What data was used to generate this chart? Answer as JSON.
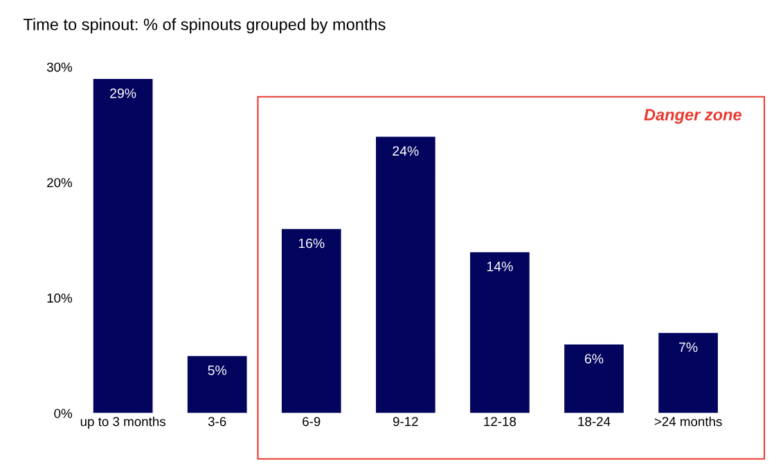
{
  "chart_data": {
    "type": "bar",
    "title": "Time to spinout: % of spinouts grouped by months",
    "categories": [
      "up to 3 months",
      "3-6",
      "6-9",
      "9-12",
      "12-18",
      "18-24",
      ">24 months"
    ],
    "values": [
      29,
      5,
      16,
      24,
      14,
      6,
      7
    ],
    "value_labels": [
      "29%",
      "5%",
      "16%",
      "24%",
      "14%",
      "6%",
      "7%"
    ],
    "color": "#03045e",
    "ylim": [
      0,
      30
    ],
    "yticks": [
      {
        "value": 0,
        "label": "0%"
      },
      {
        "value": 10,
        "label": "10%"
      },
      {
        "value": 20,
        "label": "20%"
      },
      {
        "value": 30,
        "label": "30%"
      }
    ],
    "annotations": [
      "Danger zone"
    ],
    "grid": false,
    "legend": false
  }
}
